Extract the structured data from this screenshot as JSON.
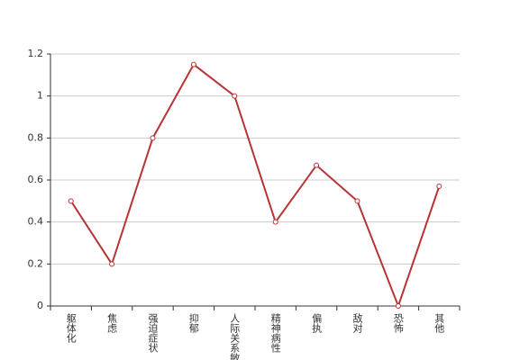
{
  "chart_data": {
    "type": "line",
    "categories": [
      "躯体化",
      "焦虑",
      "强迫症状",
      "抑郁",
      "人际关系敏感",
      "精神病性",
      "偏执",
      "敌对",
      "恐怖",
      "其他"
    ],
    "values": [
      0.5,
      0.2,
      0.8,
      1.15,
      1.0,
      0.4,
      0.67,
      0.5,
      0,
      0.57
    ],
    "color": "#b83333",
    "ylim": [
      0,
      1.2
    ],
    "yticks": [
      0,
      0.2,
      0.4,
      0.6,
      0.8,
      1,
      1.2
    ],
    "grid": true
  }
}
